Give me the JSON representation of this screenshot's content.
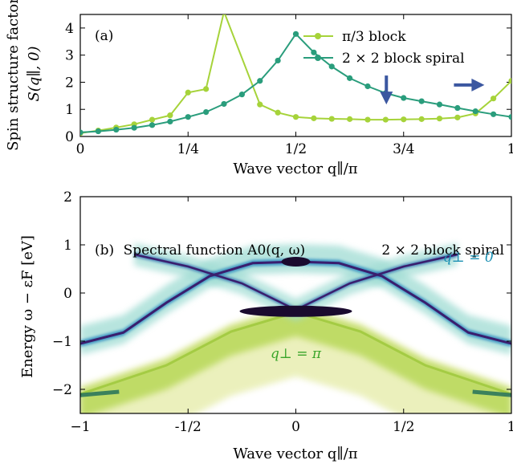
{
  "chart_data": [
    {
      "panel_label": "(a)",
      "type": "line",
      "ylabel_line1": "Spin structure factor",
      "ylabel_line2": "S(q∥, 0)",
      "xlabel": "Wave vector q∥/π",
      "xlim": [
        0,
        1
      ],
      "ylim": [
        0,
        4.5
      ],
      "xticks": [
        0,
        0.25,
        0.5,
        0.75,
        1
      ],
      "xtick_labels": [
        "0",
        "1/4",
        "1/2",
        "3/4",
        "1"
      ],
      "yticks": [
        0,
        1,
        2,
        3,
        4
      ],
      "ytick_labels": [
        "0",
        "1",
        "2",
        "3",
        "4"
      ],
      "legend_position": "top-right",
      "series": [
        {
          "name": "π/3 block",
          "color": "#a6d33a",
          "x": [
            0,
            0.0417,
            0.0833,
            0.125,
            0.1667,
            0.2083,
            0.25,
            0.2917,
            0.3333,
            0.4167,
            0.4583,
            0.5,
            0.5417,
            0.5833,
            0.625,
            0.6667,
            0.7083,
            0.75,
            0.7917,
            0.8333,
            0.875,
            0.9167,
            0.9583,
            1.0
          ],
          "y": [
            0.12,
            0.22,
            0.33,
            0.45,
            0.62,
            0.78,
            1.62,
            1.75,
            4.6,
            1.18,
            0.88,
            0.72,
            0.67,
            0.65,
            0.64,
            0.62,
            0.62,
            0.63,
            0.64,
            0.66,
            0.7,
            0.85,
            1.4,
            2.05
          ]
        },
        {
          "name": "2 × 2 block spiral",
          "color": "#2a9d7c",
          "x": [
            0,
            0.0417,
            0.0833,
            0.125,
            0.1667,
            0.2083,
            0.25,
            0.2917,
            0.3333,
            0.375,
            0.4167,
            0.4583,
            0.5,
            0.5417,
            0.5833,
            0.625,
            0.6667,
            0.7083,
            0.75,
            0.7917,
            0.8333,
            0.875,
            0.9167,
            0.9583,
            1.0
          ],
          "y": [
            0.15,
            0.19,
            0.25,
            0.32,
            0.42,
            0.55,
            0.72,
            0.9,
            1.2,
            1.55,
            2.05,
            2.8,
            3.78,
            3.1,
            2.58,
            2.15,
            1.85,
            1.6,
            1.42,
            1.3,
            1.18,
            1.05,
            0.93,
            0.82,
            0.72
          ]
        }
      ],
      "annotations": [
        {
          "type": "arrow-down",
          "x": 0.71,
          "y": 1.3,
          "color": "#3b57a0"
        },
        {
          "type": "arrow-right",
          "x": 0.93,
          "y": 1.9,
          "color": "#3b57a0"
        }
      ]
    },
    {
      "panel_label": "(b)",
      "type": "heatmap",
      "title": "Spectral function A0(q, ω)",
      "subtitle": "2 × 2 block spiral",
      "ylabel": "Energy ω − εF [eV]",
      "xlabel": "Wave vector q∥/π",
      "xlim": [
        -1,
        1
      ],
      "ylim": [
        -2.5,
        2
      ],
      "xticks": [
        -1,
        -0.5,
        0,
        0.5,
        1
      ],
      "xtick_labels": [
        "−1",
        "-1/2",
        "0",
        "1/2",
        "1"
      ],
      "yticks": [
        -2,
        -1,
        0,
        1,
        2
      ],
      "ytick_labels": [
        "−2",
        "−1",
        "0",
        "1",
        "2"
      ],
      "annotations": [
        {
          "text": "q⊥ = 0",
          "x": 0.8,
          "y": 0.65,
          "color": "#1a8fb3"
        },
        {
          "text": "q⊥ = π",
          "x": 0,
          "y": -1.35,
          "color": "#3aa52a"
        }
      ],
      "bands": [
        {
          "name": "q⊥ = 0 upper",
          "color": "#3a1e6e",
          "points": [
            [
              -1,
              -1.05
            ],
            [
              -0.8,
              -0.82
            ],
            [
              -0.6,
              -0.2
            ],
            [
              -0.4,
              0.35
            ],
            [
              -0.2,
              0.62
            ],
            [
              0,
              0.65
            ],
            [
              0.2,
              0.62
            ],
            [
              0.4,
              0.35
            ],
            [
              0.6,
              -0.2
            ],
            [
              0.8,
              -0.82
            ],
            [
              1,
              -1.05
            ]
          ]
        },
        {
          "name": "q⊥ = 0 crossing",
          "color": "#3a1e6e",
          "points": [
            [
              -0.75,
              0.8
            ],
            [
              -0.5,
              0.55
            ],
            [
              -0.25,
              0.2
            ],
            [
              0,
              -0.35
            ],
            [
              0.25,
              0.2
            ],
            [
              0.5,
              0.55
            ],
            [
              0.75,
              0.8
            ]
          ]
        },
        {
          "name": "q⊥ = π",
          "color": "#9cc73a",
          "points": [
            [
              -1,
              -2.1
            ],
            [
              -0.6,
              -1.5
            ],
            [
              -0.3,
              -0.8
            ],
            [
              0,
              -0.4
            ],
            [
              0.3,
              -0.8
            ],
            [
              0.6,
              -1.5
            ],
            [
              1,
              -2.1
            ]
          ]
        }
      ]
    }
  ]
}
